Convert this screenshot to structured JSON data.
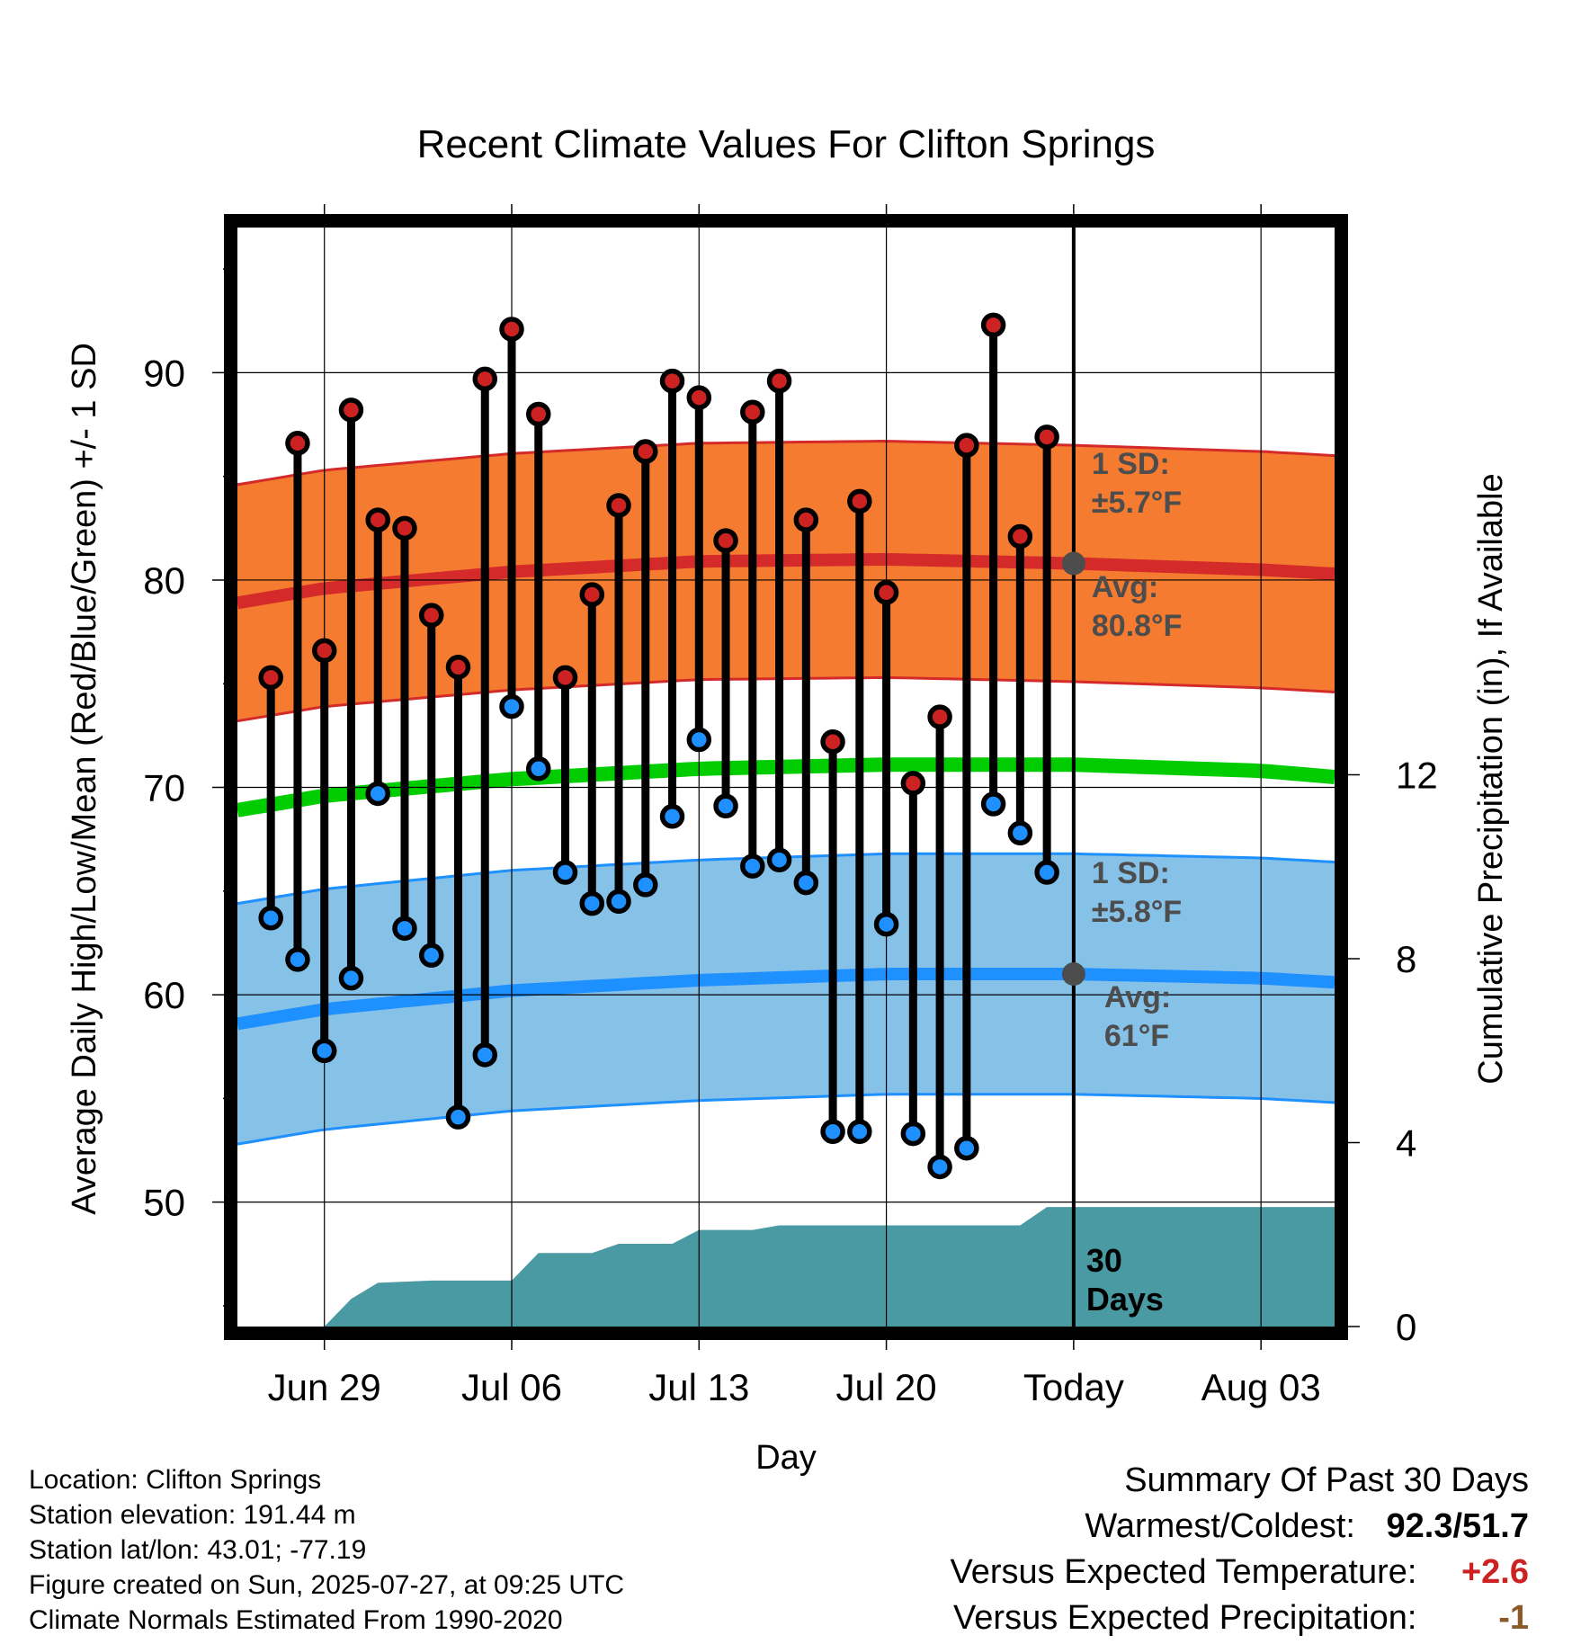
{
  "chart_data": {
    "type": "line",
    "title": "Recent Climate Values For Clifton Springs",
    "xlabel": "Day",
    "ylabel": "Average Daily High/Low/Mean (Red/Blue/Green) +/- 1 SD",
    "y2label": "Cumulative Precipitation (in), If Available",
    "x_tick_labels": [
      "Jun 29",
      "Jul 06",
      "Jul 13",
      "Jul 20",
      "Today",
      "Aug 03"
    ],
    "x_tick_dates": [
      "2025-06-29",
      "2025-07-06",
      "2025-07-13",
      "2025-07-20",
      "2025-07-27",
      "2025-08-03"
    ],
    "xlim": [
      "2025-06-25 18:00",
      "2025-08-05 18:00"
    ],
    "today": "2025-07-27",
    "ylim": [
      44,
      97
    ],
    "yticks": [
      50,
      60,
      70,
      80,
      90
    ],
    "y2lim": [
      0,
      23.9
    ],
    "y2ticks": [
      0,
      4,
      8,
      12
    ],
    "grid": true,
    "observed": [
      {
        "date": "2025-06-27",
        "high": 75.3,
        "low": 63.7
      },
      {
        "date": "2025-06-28",
        "high": 86.6,
        "low": 61.7
      },
      {
        "date": "2025-06-29",
        "high": 76.6,
        "low": 57.3
      },
      {
        "date": "2025-06-30",
        "high": 88.2,
        "low": 60.8
      },
      {
        "date": "2025-07-01",
        "high": 82.9,
        "low": 69.7
      },
      {
        "date": "2025-07-02",
        "high": 82.5,
        "low": 63.2
      },
      {
        "date": "2025-07-03",
        "high": 78.3,
        "low": 61.9
      },
      {
        "date": "2025-07-04",
        "high": 75.8,
        "low": 54.1
      },
      {
        "date": "2025-07-05",
        "high": 89.7,
        "low": 57.1
      },
      {
        "date": "2025-07-06",
        "high": 92.1,
        "low": 73.9
      },
      {
        "date": "2025-07-07",
        "high": 88.0,
        "low": 70.9
      },
      {
        "date": "2025-07-08",
        "high": 75.3,
        "low": 65.9
      },
      {
        "date": "2025-07-09",
        "high": 79.3,
        "low": 64.4
      },
      {
        "date": "2025-07-10",
        "high": 83.6,
        "low": 64.5
      },
      {
        "date": "2025-07-11",
        "high": 86.2,
        "low": 65.3
      },
      {
        "date": "2025-07-12",
        "high": 89.6,
        "low": 68.6
      },
      {
        "date": "2025-07-13",
        "high": 88.8,
        "low": 72.3
      },
      {
        "date": "2025-07-14",
        "high": 81.9,
        "low": 69.1
      },
      {
        "date": "2025-07-15",
        "high": 88.1,
        "low": 66.2
      },
      {
        "date": "2025-07-16",
        "high": 89.6,
        "low": 66.5
      },
      {
        "date": "2025-07-17",
        "high": 82.9,
        "low": 65.4
      },
      {
        "date": "2025-07-18",
        "high": 72.2,
        "low": 53.4
      },
      {
        "date": "2025-07-19",
        "high": 83.8,
        "low": 53.4
      },
      {
        "date": "2025-07-20",
        "high": 79.4,
        "low": 63.4
      },
      {
        "date": "2025-07-21",
        "high": 70.2,
        "low": 53.3
      },
      {
        "date": "2025-07-22",
        "high": 73.4,
        "low": 51.7
      },
      {
        "date": "2025-07-23",
        "high": 86.5,
        "low": 52.6
      },
      {
        "date": "2025-07-24",
        "high": 92.3,
        "low": 69.2
      },
      {
        "date": "2025-07-25",
        "high": 82.1,
        "low": 67.8
      },
      {
        "date": "2025-07-26",
        "high": 86.9,
        "low": 65.9
      }
    ],
    "normals_dates": [
      "2025-06-25 18:00",
      "2025-06-29",
      "2025-07-06",
      "2025-07-13",
      "2025-07-20",
      "2025-07-27",
      "2025-08-03",
      "2025-08-05 18:00"
    ],
    "normal_high": [
      78.9,
      79.6,
      80.4,
      80.9,
      81.0,
      80.8,
      80.5,
      80.3
    ],
    "normal_high_sd": 5.7,
    "normal_low": [
      58.6,
      59.3,
      60.2,
      60.7,
      61.0,
      61.0,
      60.8,
      60.6
    ],
    "normal_low_sd": 5.8,
    "normal_mean": [
      68.9,
      69.6,
      70.4,
      70.9,
      71.1,
      71.1,
      70.8,
      70.5
    ],
    "precip_cumulative": [
      {
        "date": "2025-06-29",
        "value": 0.0
      },
      {
        "date": "2025-06-30",
        "value": 0.6
      },
      {
        "date": "2025-07-01",
        "value": 0.95
      },
      {
        "date": "2025-07-03",
        "value": 1.0
      },
      {
        "date": "2025-07-06",
        "value": 1.0
      },
      {
        "date": "2025-07-07",
        "value": 1.6
      },
      {
        "date": "2025-07-09",
        "value": 1.6
      },
      {
        "date": "2025-07-10",
        "value": 1.8
      },
      {
        "date": "2025-07-12",
        "value": 1.8
      },
      {
        "date": "2025-07-13",
        "value": 2.1
      },
      {
        "date": "2025-07-15",
        "value": 2.1
      },
      {
        "date": "2025-07-16",
        "value": 2.2
      },
      {
        "date": "2025-07-25",
        "value": 2.2
      },
      {
        "date": "2025-07-26",
        "value": 2.6
      },
      {
        "date": "2025-08-05 18:00",
        "value": 2.6
      }
    ],
    "annotations": {
      "high_sd": [
        "1 SD:",
        "±5.7°F"
      ],
      "high_avg": [
        "Avg:",
        "80.8°F"
      ],
      "low_sd": [
        "1 SD:",
        "±5.8°F"
      ],
      "low_avg": [
        "Avg:",
        "61°F"
      ],
      "days": [
        "30",
        "Days"
      ]
    },
    "colors": {
      "high_band": "#f47b30",
      "high_line": "#d42a2a",
      "low_band": "#86c1e8",
      "low_line": "#1e90ff",
      "mean_line": "#00cc00",
      "precip": "#4a9aa3",
      "high_dot": "#cc2222",
      "low_dot": "#1e90ff",
      "today_dot": "#4d4d4d"
    }
  },
  "info": {
    "location": "Location: Clifton Springs",
    "elevation": "Station elevation: 191.44 m",
    "latlon": "Station lat/lon: 43.01; -77.19",
    "created": "Figure created on Sun, 2025-07-27, at 09:25 UTC",
    "normals": "Climate Normals Estimated From 1990-2020"
  },
  "summary": {
    "heading": "Summary Of Past 30 Days",
    "warm_cold_label": "Warmest/Coldest:",
    "warm_cold_value": "92.3/51.7",
    "temp_label": "Versus Expected Temperature:",
    "temp_value": "+2.6",
    "precip_label": "Versus Expected Precipitation:",
    "precip_value": "-1"
  }
}
